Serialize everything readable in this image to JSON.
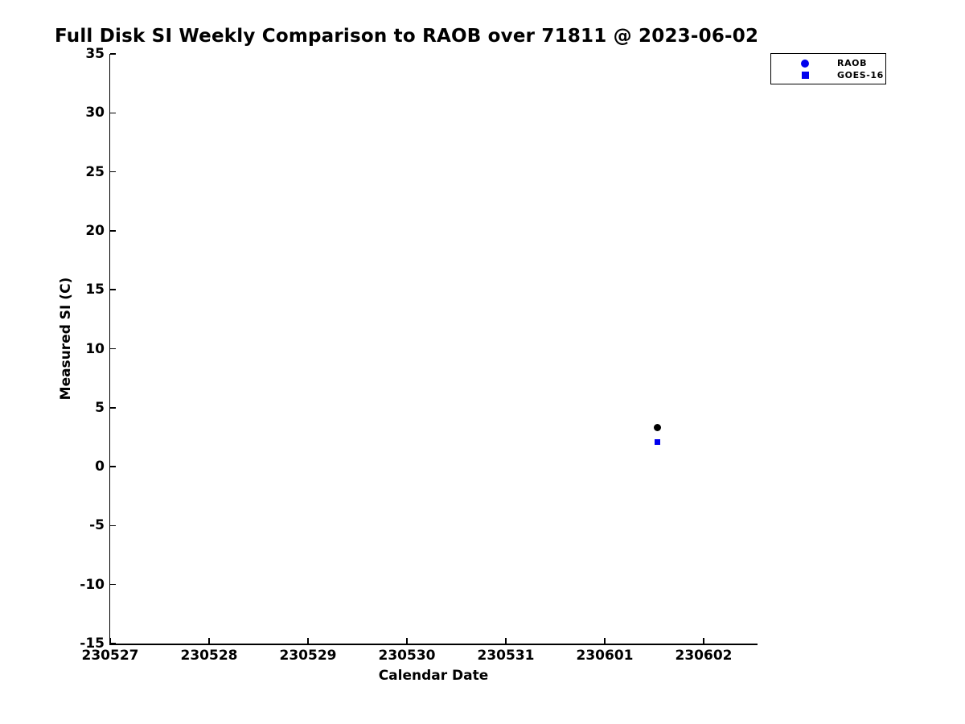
{
  "chart_data": {
    "type": "scatter",
    "title": "Full Disk SI Weekly Comparison to RAOB over 71811 @ 2023-06-02",
    "xlabel": "Calendar Date",
    "ylabel": "Measured SI (C)",
    "x_tick_labels": [
      "230527",
      "230528",
      "230529",
      "230530",
      "230531",
      "230601",
      "230602"
    ],
    "y_ticks": [
      35,
      30,
      25,
      20,
      15,
      10,
      5,
      0,
      -5,
      -10,
      -15
    ],
    "ylim": [
      -15,
      35
    ],
    "xlim_day_offsets": [
      0,
      6.55
    ],
    "grid": false,
    "legend_position": "top-right",
    "series": [
      {
        "name": "RAOB",
        "marker": "circle",
        "marker_color": "#000000",
        "legend_marker_color": "#0000ee",
        "points": [
          {
            "x_code": "230601.5",
            "day_offset": 5.53,
            "y": 3.3
          }
        ]
      },
      {
        "name": "GOES-16",
        "marker": "square",
        "marker_color": "#0000ee",
        "legend_marker_color": "#0000ee",
        "points": [
          {
            "x_code": "230601.5",
            "day_offset": 5.53,
            "y": 2.1
          }
        ]
      }
    ],
    "colors": {
      "axis": "#000000",
      "background": "#ffffff",
      "blue": "#0000ee",
      "black": "#000000"
    }
  }
}
